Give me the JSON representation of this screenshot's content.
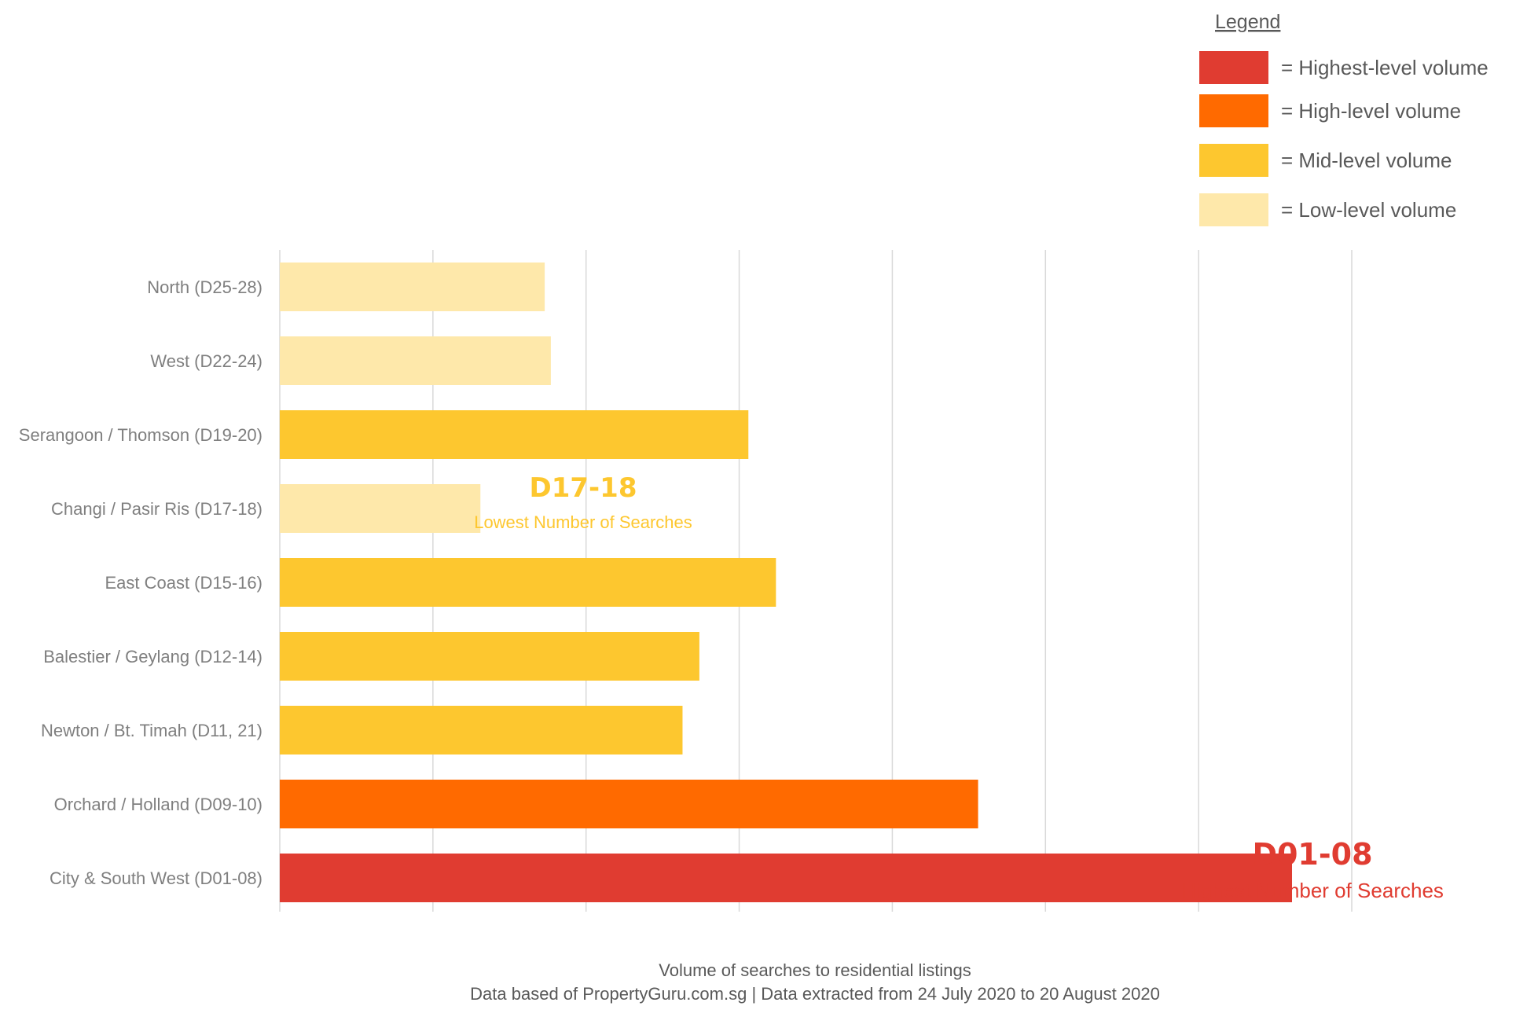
{
  "chart_data": {
    "type": "bar",
    "orientation": "horizontal",
    "categories": [
      "North (D25-28)",
      "West (D22-24)",
      "Serangoon / Thomson (D19-20)",
      "Changi / Pasir Ris (D17-18)",
      "East Coast (D15-16)",
      "Balestier / Geylang (D12-14)",
      "Newton / Bt. Timah (D11, 21)",
      "Orchard / Holland (D09-10)",
      "City & South West (D01-08)"
    ],
    "values": [
      1.73,
      1.77,
      3.06,
      1.31,
      3.24,
      2.74,
      2.63,
      4.56,
      6.61
    ],
    "levels": [
      "low",
      "low",
      "mid",
      "low",
      "mid",
      "mid",
      "mid",
      "high",
      "highest"
    ],
    "xlim": [
      0,
      7
    ],
    "grid": true,
    "x_tick_labels_shown": false,
    "caption_line1": "Volume of searches to residential listings",
    "caption_line2": "Data based of PropertyGuru.com.sg | Data extracted from 24 July 2020 to 20 August 2020",
    "legend": {
      "title": "Legend",
      "placement": "top-right",
      "items": [
        {
          "level": "highest",
          "label": "= Highest-level volume",
          "color": "#e03c31"
        },
        {
          "level": "high",
          "label": "= High-level volume",
          "color": "#ff6a00"
        },
        {
          "level": "mid",
          "label": "= Mid-level volume",
          "color": "#fdc72f"
        },
        {
          "level": "low",
          "label": "= Low-level volume",
          "color": "#fee8aa"
        }
      ]
    },
    "annotations": {
      "lowest": {
        "code": "D17-18",
        "text": "Lowest Number of Searches",
        "color": "#fdc72f",
        "category_index": 3
      },
      "highest": {
        "code": "D01-08",
        "text": "Highest Number of Searches",
        "color": "#e03c31",
        "category_index": 8
      }
    },
    "colors": {
      "highest": "#e03c31",
      "high": "#ff6a00",
      "mid": "#fdc72f",
      "low": "#fee8aa",
      "grid": "#d9d9d9",
      "label": "#7f7f7f",
      "text": "#595959"
    }
  }
}
